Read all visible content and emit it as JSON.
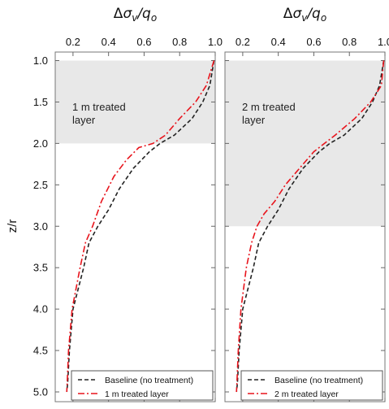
{
  "figure": {
    "ylabel": "z/r",
    "y_ticks": [
      "1.0",
      "1.5",
      "2.0",
      "2.5",
      "3.0",
      "3.5",
      "4.0",
      "4.5",
      "5.0"
    ],
    "x_ticks": [
      "0.2",
      "0.4",
      "0.6",
      "0.8",
      "1.0"
    ],
    "colors": {
      "baseline": "#222222",
      "treated": "#e8141c",
      "shade": "#e8e8e8"
    }
  },
  "chart_data": [
    {
      "type": "line",
      "title": "Δσ_v/q_o",
      "xlabel": "Δσ_v/q_o",
      "ylabel": "z/r",
      "xlim": [
        0.1,
        1.0
      ],
      "ylim": [
        5.0,
        1.0
      ],
      "y_inverted": true,
      "grid": false,
      "legend": "bottom",
      "annotation": {
        "lines": [
          "1 m treated",
          "layer"
        ]
      },
      "shaded_band": {
        "y_from": 1.0,
        "y_to": 2.0
      },
      "series": [
        {
          "name": "Baseline (no treatment)",
          "style": "dashed",
          "x": [
            0.993,
            0.97,
            0.93,
            0.87,
            0.77,
            0.69,
            0.63,
            0.54,
            0.46,
            0.4,
            0.34,
            0.29,
            0.26,
            0.2,
            0.18,
            0.17,
            0.165
          ],
          "y": [
            1.0,
            1.3,
            1.5,
            1.7,
            1.9,
            2.0,
            2.1,
            2.3,
            2.55,
            2.8,
            3.0,
            3.2,
            3.5,
            4.0,
            4.5,
            4.9,
            5.0
          ]
        },
        {
          "name": "1 m treated layer",
          "style": "dashdot",
          "x": [
            0.993,
            0.95,
            0.89,
            0.8,
            0.72,
            0.65,
            0.57,
            0.5,
            0.43,
            0.36,
            0.31,
            0.27,
            0.24,
            0.195,
            0.175,
            0.167,
            0.165
          ],
          "y": [
            1.0,
            1.3,
            1.5,
            1.7,
            1.9,
            2.0,
            2.05,
            2.2,
            2.4,
            2.7,
            3.0,
            3.2,
            3.5,
            4.0,
            4.5,
            4.9,
            5.0
          ]
        }
      ]
    },
    {
      "type": "line",
      "title": "Δσ_v/q_o",
      "xlabel": "Δσ_v/q_o",
      "ylabel": "z/r",
      "xlim": [
        0.1,
        1.0
      ],
      "ylim": [
        5.0,
        1.0
      ],
      "y_inverted": true,
      "grid": false,
      "legend": "bottom",
      "annotation": {
        "lines": [
          "2 m treated",
          "layer"
        ]
      },
      "shaded_band": {
        "y_from": 1.0,
        "y_to": 3.0
      },
      "series": [
        {
          "name": "Baseline (no treatment)",
          "style": "dashed",
          "x": [
            0.993,
            0.97,
            0.93,
            0.87,
            0.77,
            0.69,
            0.63,
            0.54,
            0.46,
            0.4,
            0.34,
            0.29,
            0.26,
            0.2,
            0.18,
            0.17,
            0.165
          ],
          "y": [
            1.0,
            1.3,
            1.5,
            1.7,
            1.9,
            2.0,
            2.1,
            2.3,
            2.55,
            2.8,
            3.0,
            3.2,
            3.5,
            4.0,
            4.5,
            4.9,
            5.0
          ]
        },
        {
          "name": "2 m treated layer",
          "style": "dashdot",
          "x": [
            0.993,
            0.98,
            0.92,
            0.83,
            0.72,
            0.6,
            0.52,
            0.44,
            0.38,
            0.32,
            0.28,
            0.25,
            0.22,
            0.19,
            0.175,
            0.167,
            0.165
          ],
          "y": [
            1.0,
            1.3,
            1.5,
            1.7,
            1.9,
            2.1,
            2.3,
            2.5,
            2.7,
            2.85,
            3.0,
            3.2,
            3.5,
            4.0,
            4.5,
            4.9,
            5.0
          ]
        }
      ]
    }
  ]
}
